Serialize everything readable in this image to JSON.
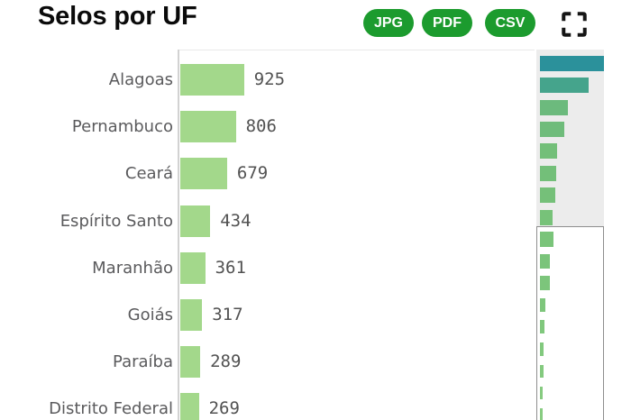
{
  "header": {
    "title": "Selos por UF",
    "export_buttons": [
      "JPG",
      "PDF",
      "CSV"
    ],
    "button_color": "#1c9b2e"
  },
  "icons": {
    "fullscreen": "fullscreen-expand-corners"
  },
  "chart_data": {
    "type": "bar",
    "orientation": "horizontal",
    "title": "Selos por UF",
    "categories": [
      "Alagoas",
      "Pernambuco",
      "Ceará",
      "Espírito Santo",
      "Maranhão",
      "Goiás",
      "Paraíba",
      "Distrito Federal"
    ],
    "values": [
      925,
      806,
      679,
      434,
      361,
      317,
      289,
      269
    ],
    "xlim": [
      0,
      925
    ],
    "grid": false,
    "legend": false,
    "bar_color": "#a3d88b",
    "axis_line_color": "#d2d2d2",
    "category_label_color": "#5a5a5c",
    "value_label_color": "#525252"
  },
  "navigator": {
    "background": "#ececec",
    "border_color": "#8e8e8e",
    "bars": [
      {
        "w": 71,
        "h": 17,
        "color": "#2b919b"
      },
      {
        "w": 54,
        "h": 17,
        "color": "#45a48c"
      },
      {
        "w": 31,
        "h": 17,
        "color": "#6cba7d"
      },
      {
        "w": 27,
        "h": 17,
        "color": "#6fbc7b"
      },
      {
        "w": 19,
        "h": 17,
        "color": "#73bf79"
      },
      {
        "w": 18,
        "h": 17,
        "color": "#73bf79"
      },
      {
        "w": 17,
        "h": 17,
        "color": "#75c079"
      },
      {
        "w": 14,
        "h": 17,
        "color": "#77c279"
      },
      {
        "w": 15,
        "h": 17,
        "color": "#7ac47a"
      },
      {
        "w": 11,
        "h": 16,
        "color": "#7ac47a"
      },
      {
        "w": 11,
        "h": 16,
        "color": "#7cc57b"
      },
      {
        "w": 6,
        "h": 15,
        "color": "#7ec67c"
      },
      {
        "w": 5,
        "h": 15,
        "color": "#80c87d"
      },
      {
        "w": 4,
        "h": 15,
        "color": "#82c97e"
      },
      {
        "w": 4,
        "h": 14,
        "color": "#84ca7f"
      },
      {
        "w": 3,
        "h": 14,
        "color": "#86cb80"
      },
      {
        "w": 3,
        "h": 14,
        "color": "#88cc81"
      }
    ]
  }
}
